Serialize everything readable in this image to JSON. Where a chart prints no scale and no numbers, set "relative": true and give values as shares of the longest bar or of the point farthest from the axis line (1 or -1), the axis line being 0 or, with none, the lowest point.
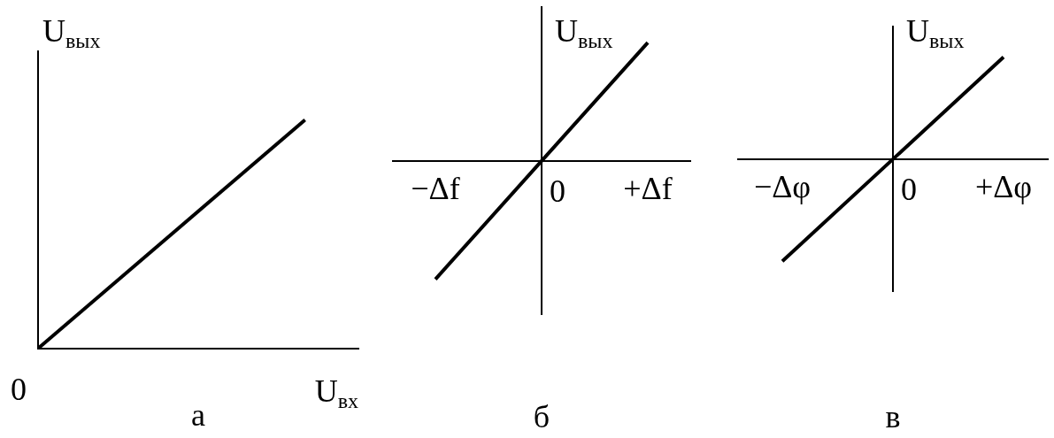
{
  "chart_data": [
    {
      "type": "line",
      "title": "а",
      "xlabel": "U$_{вх}$",
      "ylabel": "U$_{вых}$",
      "categories": [
        null,
        null
      ],
      "values": [
        0,
        1
      ],
      "color": "#000000",
      "relative": true,
      "tick_labels": false,
      "annotations": [
        "0"
      ]
    },
    {
      "type": "line",
      "title": "б",
      "ylabel": "U$_{вых}$",
      "categories": [
        "−Δf",
        "0",
        "+Δf"
      ],
      "values": [
        -1,
        0,
        1
      ],
      "color": "#000000",
      "relative": true,
      "tick_labels": "x"
    },
    {
      "type": "line",
      "title": "в",
      "ylabel": "U$_{вых}$",
      "categories": [
        "−Δφ",
        "0",
        "+Δφ"
      ],
      "values": [
        -1,
        0,
        1
      ],
      "color": "#000000",
      "relative": true,
      "tick_labels": "x"
    }
  ]
}
